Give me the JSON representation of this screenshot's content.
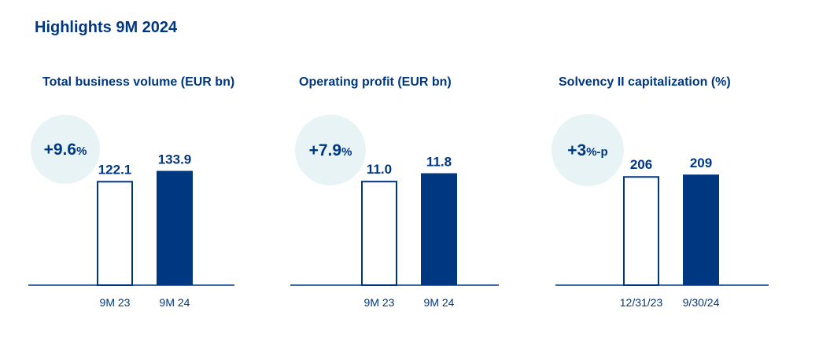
{
  "page_title": "Highlights 9M 2024",
  "colors": {
    "navy": "#003781",
    "badge_bg": "#e8f3f6",
    "white": "#ffffff"
  },
  "chart_data": [
    {
      "type": "bar",
      "title": "Total business volume (EUR bn)",
      "categories": [
        "9M 23",
        "9M 24"
      ],
      "values": [
        122.1,
        133.9
      ],
      "value_labels": [
        "122.1",
        "133.9"
      ],
      "bar_styles": [
        "outline",
        "filled"
      ],
      "change": {
        "value": "+9.6",
        "unit": "%"
      },
      "ylim": [
        0,
        150
      ]
    },
    {
      "type": "bar",
      "title": "Operating profit (EUR bn)",
      "categories": [
        "9M 23",
        "9M 24"
      ],
      "values": [
        11.0,
        11.8
      ],
      "value_labels": [
        "11.0",
        "11.8"
      ],
      "bar_styles": [
        "outline",
        "filled"
      ],
      "change": {
        "value": "+7.9",
        "unit": "%"
      },
      "ylim": [
        0,
        13.5
      ]
    },
    {
      "type": "bar",
      "title": "Solvency II capitalization (%)",
      "categories": [
        "12/31/23",
        "9/30/24"
      ],
      "values": [
        206,
        209
      ],
      "value_labels": [
        "206",
        "209"
      ],
      "bar_styles": [
        "outline",
        "filled"
      ],
      "change": {
        "value": "+3",
        "unit": "%-p"
      },
      "ylim": [
        0,
        242
      ]
    }
  ]
}
